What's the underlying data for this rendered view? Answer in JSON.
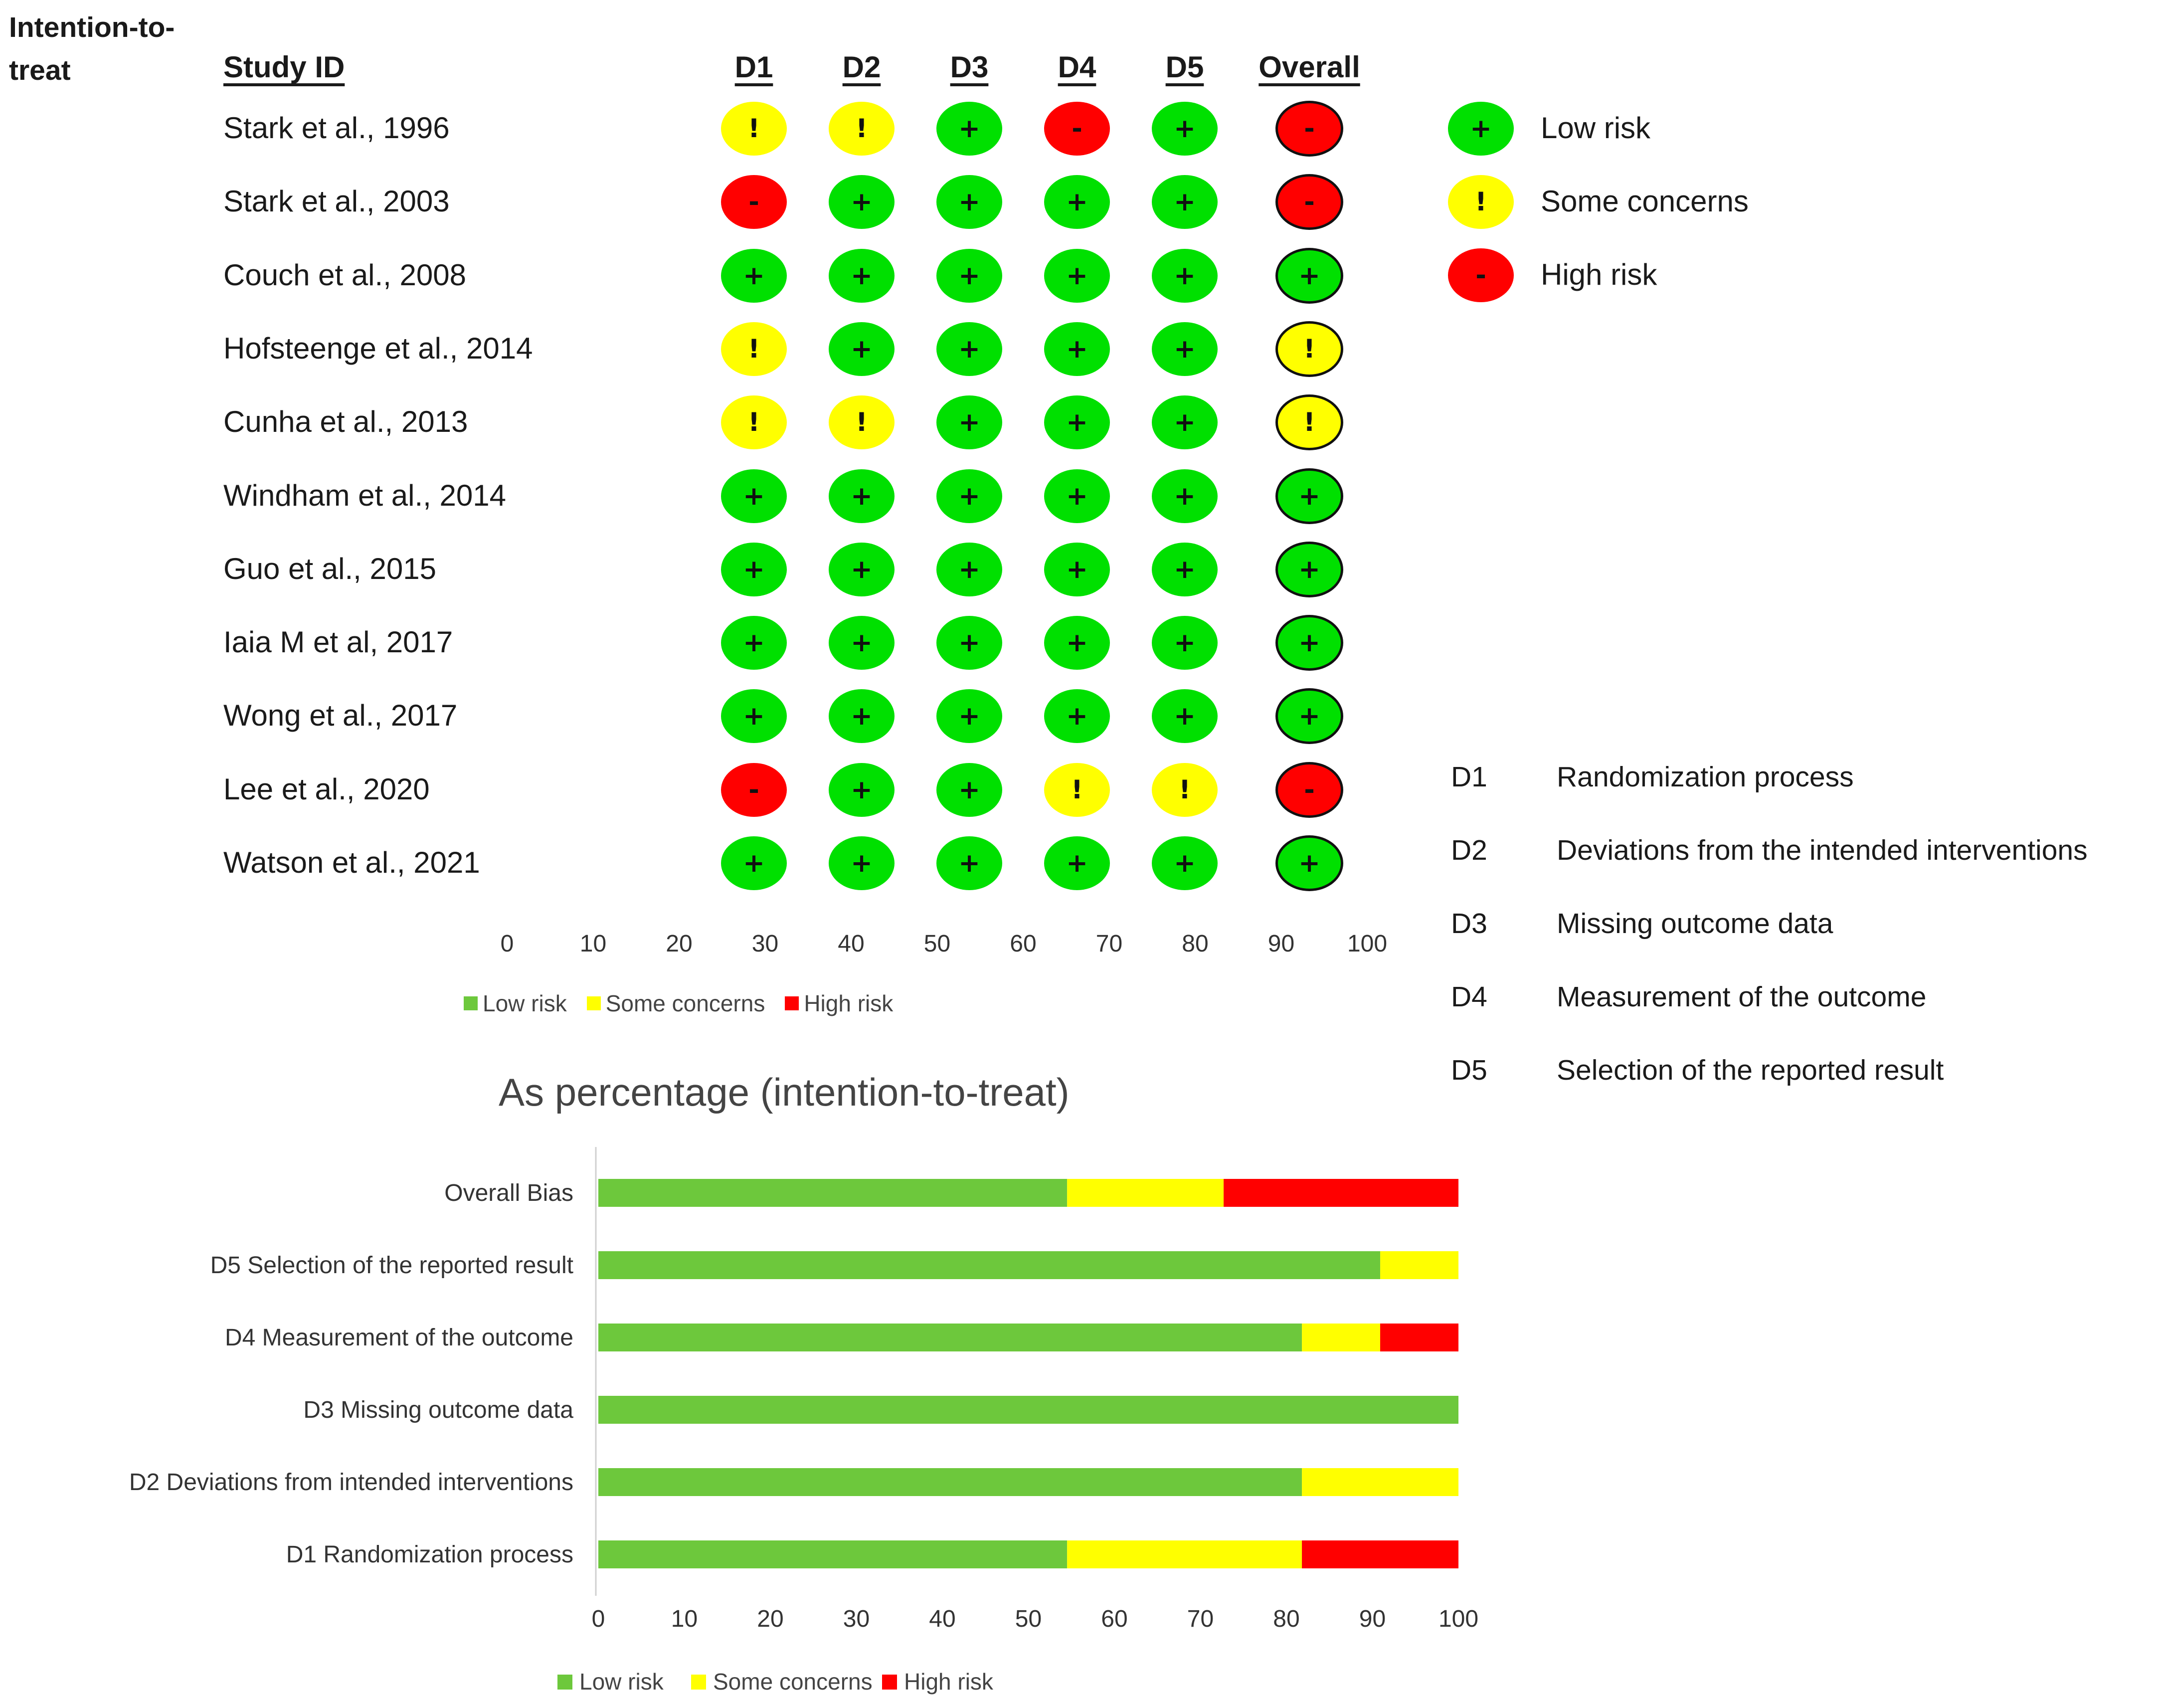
{
  "colors": {
    "low": "#00e000",
    "some": "#ffff00",
    "high": "#ff0000",
    "bar_low": "#6dc83c",
    "bar_some": "#ffff00",
    "bar_high": "#ff0000"
  },
  "side_title": "Intention-to-\ntreat",
  "headers": {
    "study": "Study ID",
    "domains": [
      "D1",
      "D2",
      "D3",
      "D4",
      "D5"
    ],
    "overall": "Overall"
  },
  "symbols": {
    "low": "+",
    "some": "!",
    "high": "-"
  },
  "studies": [
    {
      "name": "Stark et al., 1996",
      "ratings": [
        "some",
        "some",
        "low",
        "high",
        "low"
      ],
      "overall": "high"
    },
    {
      "name": "Stark et al., 2003",
      "ratings": [
        "high",
        "low",
        "low",
        "low",
        "low"
      ],
      "overall": "high"
    },
    {
      "name": "Couch et al., 2008",
      "ratings": [
        "low",
        "low",
        "low",
        "low",
        "low"
      ],
      "overall": "low"
    },
    {
      "name": "Hofsteenge et al., 2014",
      "ratings": [
        "some",
        "low",
        "low",
        "low",
        "low"
      ],
      "overall": "some"
    },
    {
      "name": "Cunha et al., 2013",
      "ratings": [
        "some",
        "some",
        "low",
        "low",
        "low"
      ],
      "overall": "some"
    },
    {
      "name": "Windham et al., 2014",
      "ratings": [
        "low",
        "low",
        "low",
        "low",
        "low"
      ],
      "overall": "low"
    },
    {
      "name": "Guo et al., 2015",
      "ratings": [
        "low",
        "low",
        "low",
        "low",
        "low"
      ],
      "overall": "low"
    },
    {
      "name": "Iaia M et al, 2017",
      "ratings": [
        "low",
        "low",
        "low",
        "low",
        "low"
      ],
      "overall": "low"
    },
    {
      "name": "Wong et al., 2017",
      "ratings": [
        "low",
        "low",
        "low",
        "low",
        "low"
      ],
      "overall": "low"
    },
    {
      "name": "Lee et al., 2020",
      "ratings": [
        "high",
        "low",
        "low",
        "some",
        "some"
      ],
      "overall": "high"
    },
    {
      "name": "Watson et al., 2021",
      "ratings": [
        "low",
        "low",
        "low",
        "low",
        "low"
      ],
      "overall": "low"
    }
  ],
  "legend": [
    {
      "key": "low",
      "label": "Low risk"
    },
    {
      "key": "some",
      "label": "Some concerns"
    },
    {
      "key": "high",
      "label": "High risk"
    }
  ],
  "definitions": [
    {
      "code": "D1",
      "text": "Randomization process"
    },
    {
      "code": "D2",
      "text": "Deviations from the intended interventions"
    },
    {
      "code": "D3",
      "text": "Missing outcome data"
    },
    {
      "code": "D4",
      "text": "Measurement of the outcome"
    },
    {
      "code": "D5",
      "text": "Selection of the reported result"
    }
  ],
  "axis1_ticks": [
    "0",
    "10",
    "20",
    "30",
    "40",
    "50",
    "60",
    "70",
    "80",
    "90",
    "100"
  ],
  "chart_data": {
    "type": "bar",
    "orientation": "horizontal",
    "stacked": true,
    "title": "As percentage (intention-to-treat)",
    "categories": [
      "Overall Bias",
      "D5 Selection of the reported result",
      "D4 Measurement of the outcome",
      "D3 Missing outcome data",
      "D2 Deviations from intended interventions",
      "D1 Randomization process"
    ],
    "series": [
      {
        "name": "Low risk",
        "values": [
          54.5,
          90.9,
          81.8,
          100,
          81.8,
          54.5
        ]
      },
      {
        "name": "Some concerns",
        "values": [
          18.2,
          9.1,
          9.1,
          0,
          18.2,
          27.3
        ]
      },
      {
        "name": "High risk",
        "values": [
          27.3,
          0,
          9.1,
          0,
          0,
          18.2
        ]
      }
    ],
    "xlim": [
      0,
      100
    ],
    "xticks": [
      "0",
      "10",
      "20",
      "30",
      "40",
      "50",
      "60",
      "70",
      "80",
      "90",
      "100"
    ],
    "legend_position": "bottom"
  }
}
